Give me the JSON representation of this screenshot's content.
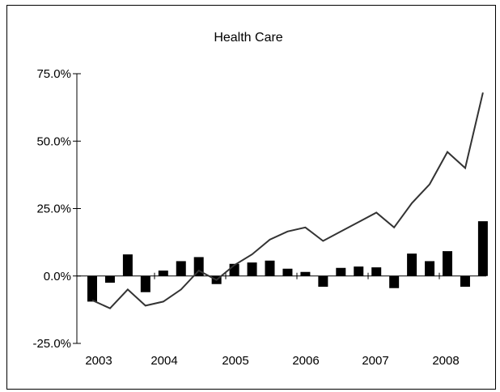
{
  "chart_data": {
    "type": "bar",
    "title": "Health Care",
    "xlabel": "",
    "ylabel": "",
    "x_tick_labels": [
      "2003",
      "2004",
      "2005",
      "2006",
      "2007",
      "2008"
    ],
    "y_tick_labels": [
      "75.0%",
      "50.0%",
      "25.0%",
      "0.0%",
      "-25.0%"
    ],
    "y_ticks": [
      75,
      50,
      25,
      0,
      -25
    ],
    "ylim": [
      -25,
      75
    ],
    "grid": false,
    "legend": "none",
    "colors": {
      "bars": "#000000",
      "line": "#333333",
      "axis": "#000000"
    },
    "series": [
      {
        "type": "bar",
        "values": [
          -9.5,
          -2.5,
          8.0,
          -6.0,
          2.0,
          5.5,
          7.0,
          -3.0,
          4.5,
          5.0,
          5.7,
          2.7,
          1.5,
          -4.0,
          3.0,
          3.5,
          3.2,
          -4.5,
          8.3,
          5.5,
          9.2,
          -4.0,
          20.3
        ]
      },
      {
        "type": "line",
        "values": [
          -9.0,
          -12.0,
          -5.0,
          -11.0,
          -9.5,
          -5.0,
          2.0,
          -1.5,
          4.0,
          8.0,
          13.5,
          16.5,
          18.0,
          13.0,
          16.5,
          20.0,
          23.5,
          18.0,
          27.0,
          34.0,
          46.0,
          40.0,
          68.0
        ]
      }
    ]
  }
}
